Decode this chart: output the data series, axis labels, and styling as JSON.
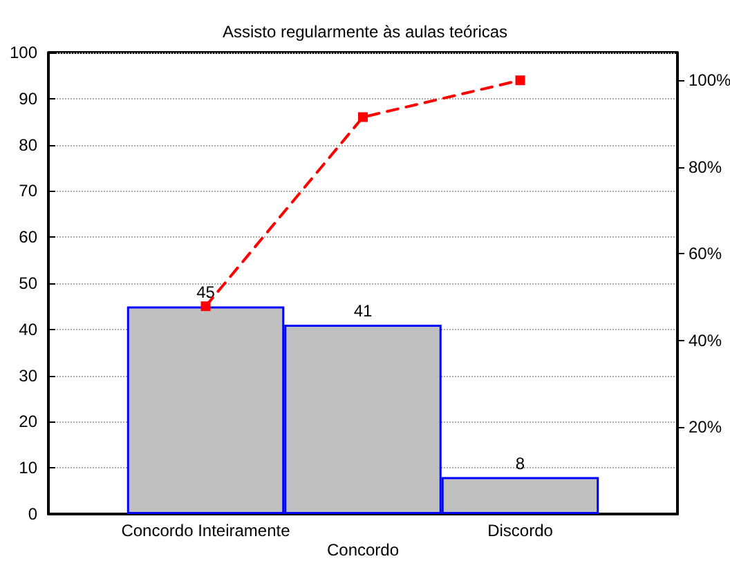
{
  "chart_data": {
    "type": "bar",
    "title": "Assisto regularmente às aulas teóricas",
    "categories": [
      "Concordo Inteiramente",
      "Concordo",
      "Discordo"
    ],
    "series": [
      {
        "color": "#c0c0c0",
        "values": [
          45,
          41,
          8
        ],
        "value_labels": [
          "45",
          "41",
          "8"
        ]
      },
      {
        "type": "line",
        "axis": "y2",
        "color": "#ff0000",
        "values": [
          47.9,
          91.5,
          100
        ],
        "marker": "square",
        "line_style": "dashed"
      }
    ],
    "ylim": [
      0,
      100
    ],
    "yticks": [
      0,
      10,
      20,
      30,
      40,
      50,
      60,
      70,
      80,
      90,
      100
    ],
    "y2lim": [
      0,
      106.4
    ],
    "y2ticks": [
      {
        "value": 20,
        "label": "20%"
      },
      {
        "value": 40,
        "label": "40%"
      },
      {
        "value": 60,
        "label": "60%"
      },
      {
        "value": 80,
        "label": "80%"
      },
      {
        "value": 100,
        "label": "100%"
      }
    ],
    "grid": "y"
  }
}
